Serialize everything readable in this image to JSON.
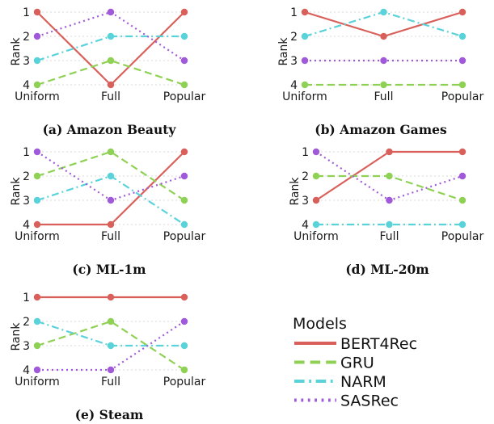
{
  "figure": {
    "legend_title": "Models",
    "legend": [
      "BERT4Rec",
      "GRU",
      "NARM",
      "SASRec"
    ],
    "colors": {
      "BERT4Rec": "#d9605a",
      "GRU": "#8fd154",
      "NARM": "#5ad2da",
      "SASRec": "#a05ad9"
    },
    "line_styles": {
      "BERT4Rec": "solid",
      "GRU": "dashed",
      "NARM": "dash-dot",
      "SASRec": "dotted"
    },
    "grid": "horizontal dotted"
  },
  "chart_data": [
    {
      "type": "line",
      "caption": "(a) Amazon Beauty",
      "ylabel": "Rank",
      "categories": [
        "Uniform",
        "Full",
        "Popular"
      ],
      "yticks": [
        1,
        2,
        3,
        4
      ],
      "ylim": [
        4,
        1
      ],
      "series": [
        {
          "name": "BERT4Rec",
          "values": [
            1,
            4,
            1
          ]
        },
        {
          "name": "GRU",
          "values": [
            4,
            3,
            4
          ]
        },
        {
          "name": "NARM",
          "values": [
            3,
            2,
            2
          ]
        },
        {
          "name": "SASRec",
          "values": [
            2,
            1,
            3
          ]
        }
      ]
    },
    {
      "type": "line",
      "caption": "(b) Amazon Games",
      "ylabel": "Rank",
      "categories": [
        "Uniform",
        "Full",
        "Popular"
      ],
      "yticks": [
        1,
        2,
        3,
        4
      ],
      "ylim": [
        4,
        1
      ],
      "series": [
        {
          "name": "BERT4Rec",
          "values": [
            1,
            2,
            1
          ]
        },
        {
          "name": "GRU",
          "values": [
            4,
            4,
            4
          ]
        },
        {
          "name": "NARM",
          "values": [
            2,
            1,
            2
          ]
        },
        {
          "name": "SASRec",
          "values": [
            3,
            3,
            3
          ]
        }
      ]
    },
    {
      "type": "line",
      "caption": "(c) ML-1m",
      "ylabel": "Rank",
      "categories": [
        "Uniform",
        "Full",
        "Popular"
      ],
      "yticks": [
        1,
        2,
        3,
        4
      ],
      "ylim": [
        4,
        1
      ],
      "series": [
        {
          "name": "BERT4Rec",
          "values": [
            4,
            4,
            1
          ]
        },
        {
          "name": "GRU",
          "values": [
            2,
            1,
            3
          ]
        },
        {
          "name": "NARM",
          "values": [
            3,
            2,
            4
          ]
        },
        {
          "name": "SASRec",
          "values": [
            1,
            3,
            2
          ]
        }
      ]
    },
    {
      "type": "line",
      "caption": "(d) ML-20m",
      "ylabel": "Rank",
      "categories": [
        "Uniform",
        "Full",
        "Popular"
      ],
      "yticks": [
        1,
        2,
        3,
        4
      ],
      "ylim": [
        4,
        1
      ],
      "series": [
        {
          "name": "BERT4Rec",
          "values": [
            3,
            1,
            1
          ]
        },
        {
          "name": "GRU",
          "values": [
            2,
            2,
            3
          ]
        },
        {
          "name": "NARM",
          "values": [
            4,
            4,
            4
          ]
        },
        {
          "name": "SASRec",
          "values": [
            1,
            3,
            2
          ]
        }
      ]
    },
    {
      "type": "line",
      "caption": "(e) Steam",
      "ylabel": "Rank",
      "categories": [
        "Uniform",
        "Full",
        "Popular"
      ],
      "yticks": [
        1,
        2,
        3,
        4
      ],
      "ylim": [
        4,
        1
      ],
      "series": [
        {
          "name": "BERT4Rec",
          "values": [
            1,
            1,
            1
          ]
        },
        {
          "name": "GRU",
          "values": [
            3,
            2,
            4
          ]
        },
        {
          "name": "NARM",
          "values": [
            2,
            3,
            3
          ]
        },
        {
          "name": "SASRec",
          "values": [
            4,
            4,
            2
          ]
        }
      ]
    }
  ]
}
